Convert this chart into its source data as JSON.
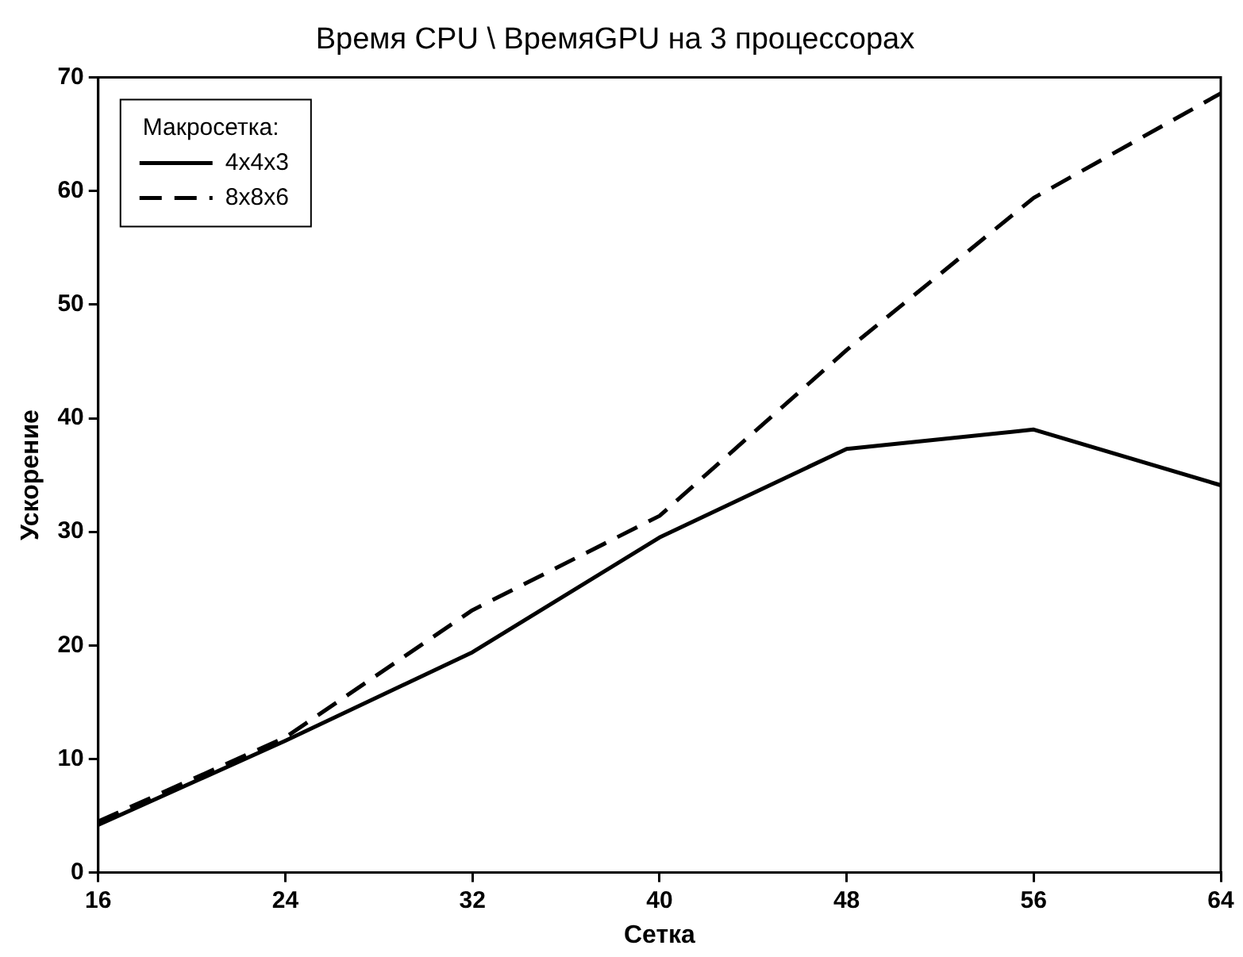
{
  "chart_data": {
    "type": "line",
    "title": "Время CPU \\ ВремяGPU на 3 процессорах",
    "xlabel": "Сетка",
    "ylabel": "Ускорение",
    "legend_title": "Макросетка:",
    "x": [
      16,
      24,
      32,
      40,
      48,
      56,
      64
    ],
    "series": [
      {
        "name": "4x4x3",
        "color": "#000000",
        "line_style": "solid",
        "values": [
          4.2,
          11.6,
          19.4,
          29.5,
          37.3,
          39.0,
          34.1
        ]
      },
      {
        "name": "8x8x6",
        "color": "#000000",
        "line_style": "dashed",
        "values": [
          4.5,
          11.9,
          23.1,
          31.4,
          46.0,
          59.4,
          68.6
        ]
      }
    ],
    "xlim": [
      16,
      64
    ],
    "xticks": [
      16,
      24,
      32,
      40,
      48,
      56,
      64
    ],
    "ylim": [
      0,
      70
    ],
    "yticks": [
      0,
      10,
      20,
      30,
      40,
      50,
      60,
      70
    ],
    "grid": false,
    "legend": "top left",
    "marker": "none"
  }
}
